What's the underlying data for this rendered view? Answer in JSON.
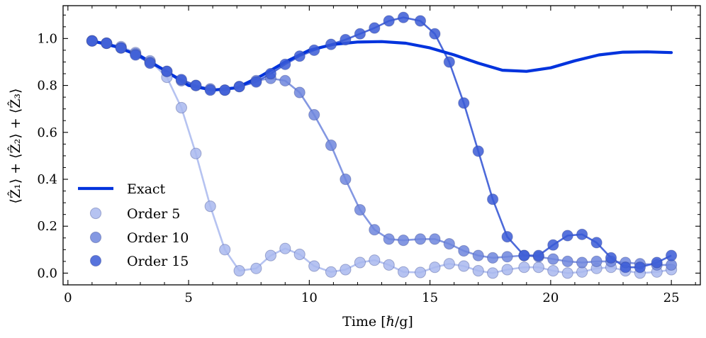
{
  "chart_data": {
    "type": "line",
    "title": "",
    "xlabel": "Time [ℏ/g]",
    "ylabel": "⟨Ẑ₁⟩ + ⟨Ẑ₂⟩ + ⟨Ẑ₃⟩",
    "xlim": [
      -0.2,
      26.2
    ],
    "ylim": [
      -0.05,
      1.14
    ],
    "xticks": [
      0,
      5,
      10,
      15,
      20,
      25
    ],
    "yticks": [
      0.0,
      0.2,
      0.4,
      0.6,
      0.8,
      1.0
    ],
    "xtick_labels": [
      "0",
      "5",
      "10",
      "15",
      "20",
      "25"
    ],
    "ytick_labels": [
      "0.0",
      "0.2",
      "0.4",
      "0.6",
      "0.8",
      "1.0"
    ],
    "legend_position": "lower-left",
    "colors": {
      "exact": "#0033dd",
      "order5": "#a9b8ef",
      "order10": "#6f86dd",
      "order15": "#3a5ad6"
    },
    "exact": {
      "name": "Exact",
      "x": [
        1.0,
        2.0,
        3.0,
        4.0,
        5.0,
        6.0,
        7.0,
        8.0,
        9.0,
        10.0,
        11.0,
        12.0,
        13.0,
        14.0,
        15.0,
        16.0,
        17.0,
        18.0,
        19.0,
        20.0,
        21.0,
        22.0,
        23.0,
        24.0,
        25.0
      ],
      "y": [
        0.99,
        0.965,
        0.925,
        0.865,
        0.8,
        0.78,
        0.79,
        0.84,
        0.9,
        0.95,
        0.975,
        0.985,
        0.987,
        0.98,
        0.96,
        0.93,
        0.895,
        0.865,
        0.86,
        0.875,
        0.905,
        0.93,
        0.942,
        0.943,
        0.94
      ]
    },
    "series": [
      {
        "name": "Order 5",
        "x": [
          1.0,
          1.6,
          2.2,
          2.8,
          3.4,
          4.1,
          4.7,
          5.3,
          5.9,
          6.5,
          7.1,
          7.8,
          8.4,
          9.0,
          9.6,
          10.2,
          10.9,
          11.5,
          12.1,
          12.7,
          13.3,
          13.9,
          14.6,
          15.2,
          15.8,
          16.4,
          17.0,
          17.6,
          18.2,
          18.9,
          19.5,
          20.1,
          20.7,
          21.3,
          21.9,
          22.5,
          23.1,
          23.7,
          24.4,
          25.0
        ],
        "y": [
          0.99,
          0.98,
          0.965,
          0.94,
          0.905,
          0.835,
          0.705,
          0.51,
          0.285,
          0.1,
          0.01,
          0.02,
          0.075,
          0.105,
          0.08,
          0.03,
          0.005,
          0.015,
          0.045,
          0.055,
          0.035,
          0.005,
          0.003,
          0.025,
          0.04,
          0.03,
          0.01,
          0.0,
          0.015,
          0.025,
          0.025,
          0.01,
          0.0,
          0.005,
          0.02,
          0.025,
          0.01,
          0.0,
          0.005,
          0.015
        ]
      },
      {
        "name": "Order 10",
        "x": [
          1.0,
          1.6,
          2.2,
          2.8,
          3.4,
          4.1,
          4.7,
          5.3,
          5.9,
          6.5,
          7.1,
          7.8,
          8.4,
          9.0,
          9.6,
          10.2,
          10.9,
          11.5,
          12.1,
          12.7,
          13.3,
          13.9,
          14.6,
          15.2,
          15.8,
          16.4,
          17.0,
          17.6,
          18.2,
          18.9,
          19.5,
          20.1,
          20.7,
          21.3,
          21.9,
          22.5,
          23.1,
          23.7,
          24.4,
          25.0
        ],
        "y": [
          0.99,
          0.98,
          0.96,
          0.935,
          0.9,
          0.86,
          0.82,
          0.8,
          0.785,
          0.78,
          0.795,
          0.82,
          0.83,
          0.82,
          0.77,
          0.675,
          0.545,
          0.4,
          0.27,
          0.185,
          0.145,
          0.14,
          0.145,
          0.145,
          0.125,
          0.095,
          0.075,
          0.065,
          0.07,
          0.075,
          0.07,
          0.06,
          0.05,
          0.045,
          0.05,
          0.05,
          0.045,
          0.04,
          0.035,
          0.035
        ]
      },
      {
        "name": "Order 15",
        "x": [
          1.0,
          1.6,
          2.2,
          2.8,
          3.4,
          4.1,
          4.7,
          5.3,
          5.9,
          6.5,
          7.1,
          7.8,
          8.4,
          9.0,
          9.6,
          10.2,
          10.9,
          11.5,
          12.1,
          12.7,
          13.3,
          13.9,
          14.6,
          15.2,
          15.8,
          16.4,
          17.0,
          17.6,
          18.2,
          18.9,
          19.5,
          20.1,
          20.7,
          21.3,
          21.9,
          22.5,
          23.1,
          23.7,
          24.4,
          25.0
        ],
        "y": [
          0.99,
          0.98,
          0.96,
          0.93,
          0.895,
          0.86,
          0.825,
          0.8,
          0.78,
          0.78,
          0.795,
          0.815,
          0.85,
          0.89,
          0.925,
          0.95,
          0.975,
          0.995,
          1.02,
          1.045,
          1.075,
          1.09,
          1.075,
          1.02,
          0.9,
          0.725,
          0.52,
          0.315,
          0.155,
          0.075,
          0.075,
          0.12,
          0.16,
          0.165,
          0.13,
          0.065,
          0.025,
          0.025,
          0.045,
          0.075
        ]
      }
    ]
  }
}
